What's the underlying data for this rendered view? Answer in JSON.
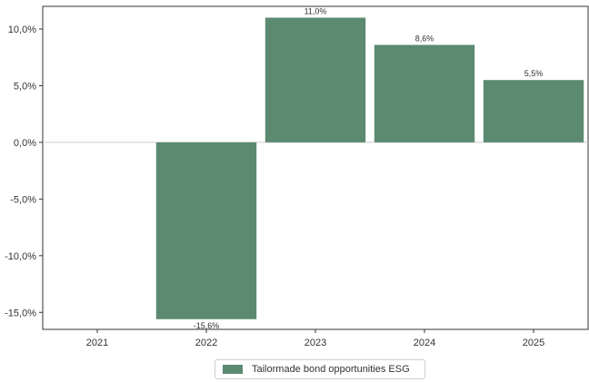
{
  "chart_data": {
    "type": "bar",
    "categories": [
      "2021",
      "2022",
      "2023",
      "2024",
      "2025"
    ],
    "series": [
      {
        "name": "Tailormade bond opportunities ESG",
        "values": [
          null,
          -15.6,
          11.0,
          8.6,
          5.5
        ],
        "labels": [
          "",
          "-15,6%",
          "11,0%",
          "8,6%",
          "5,5%"
        ],
        "color": "#5c8a71"
      }
    ],
    "yticks": [
      10,
      5,
      0,
      -5,
      -10,
      -15
    ],
    "ytick_labels": [
      "10,0%",
      "5,0%",
      "0,0%",
      "-5,0%",
      "-10,0%",
      "-15,0%"
    ],
    "ylim": [
      -16.5,
      12
    ],
    "legend_position": "bottom-center",
    "grid": false,
    "zero_line_color": "#cccccc"
  }
}
